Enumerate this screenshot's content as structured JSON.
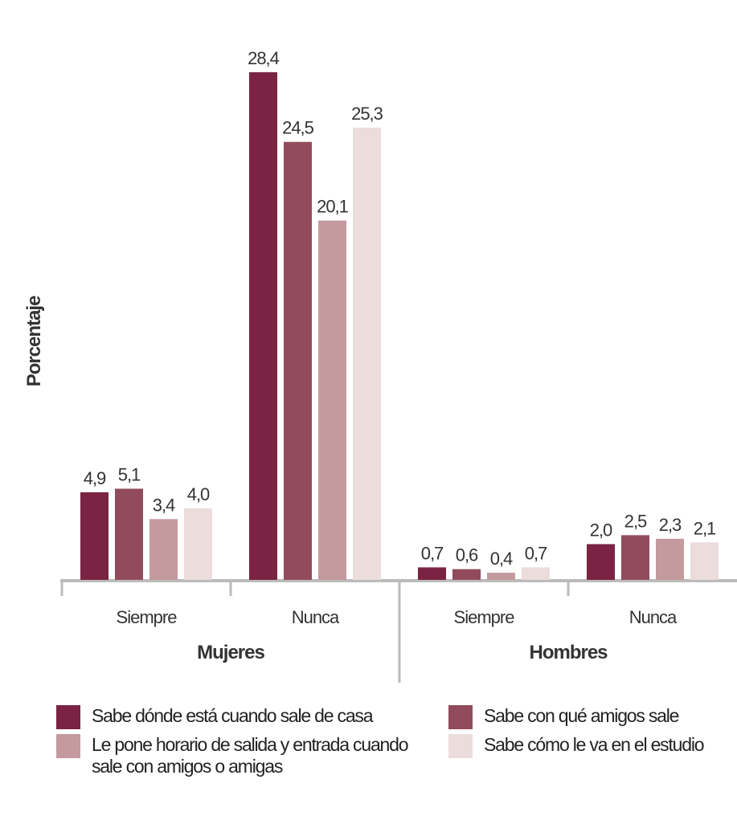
{
  "chart_data": {
    "type": "bar",
    "y_label": "Porcentaje",
    "categories": [
      "Siempre",
      "Nunca",
      "Siempre",
      "Nunca"
    ],
    "groups": [
      "Mujeres",
      "Hombres"
    ],
    "ylim": [
      0,
      31
    ],
    "series": [
      {
        "name": "Sabe dónde está cuando sale de casa",
        "color": "#7b2343",
        "values": [
          4.9,
          28.4,
          0.7,
          2.0
        ],
        "value_labels": [
          "4,9",
          "28,4",
          "0,7",
          "2,0"
        ]
      },
      {
        "name": "Sabe con qué amigos sale",
        "color": "#924b5c",
        "values": [
          5.1,
          24.5,
          0.6,
          2.5
        ],
        "value_labels": [
          "5,1",
          "24,5",
          "0,6",
          "2,5"
        ]
      },
      {
        "name": "Le pone horario de salida y entrada cuando sale con amigos o amigas",
        "color": "#c49a9e",
        "values": [
          3.4,
          20.1,
          0.4,
          2.3
        ],
        "value_labels": [
          "3,4",
          "20,1",
          "0,4",
          "2,3"
        ]
      },
      {
        "name": "Sabe cómo le va en el estudio",
        "color": "#ecdcdc",
        "values": [
          4.0,
          25.3,
          0.7,
          2.1
        ],
        "value_labels": [
          "4,0",
          "25,3",
          "0,7",
          "2,1"
        ]
      }
    ]
  }
}
